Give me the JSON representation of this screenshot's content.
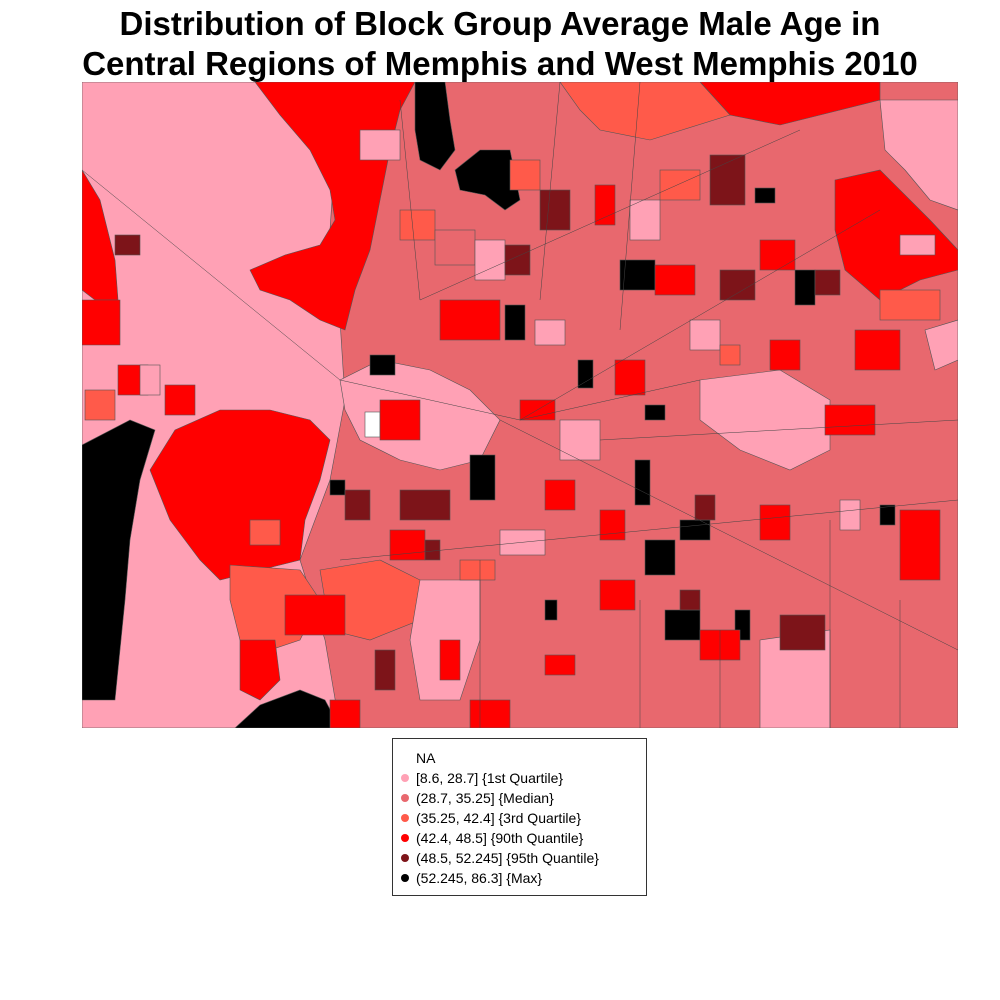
{
  "title": {
    "line1": "Distribution of Block Group Average Male Age in",
    "line2": "Central Regions of Memphis and West Memphis 2010"
  },
  "colors": {
    "na": "#ffffff",
    "q1": "#ffa1b5",
    "median": "#e8686e",
    "q3": "#ff5a4a",
    "q90": "#ff0000",
    "q95": "#7d1419",
    "max": "#000000",
    "border": "#555555"
  },
  "legend": {
    "items": [
      {
        "label": "NA",
        "color": "none"
      },
      {
        "label": "[8.6, 28.7] {1st Quartile}",
        "color": "#ffa1b5"
      },
      {
        "label": "(28.7, 35.25] {Median}",
        "color": "#e8686e"
      },
      {
        "label": "(35.25, 42.4] {3rd Quartile}",
        "color": "#ff5a4a"
      },
      {
        "label": "(42.4, 48.5] {90th Quantile}",
        "color": "#ff0000"
      },
      {
        "label": "(48.5, 52.245] {95th Quantile}",
        "color": "#7d1419"
      },
      {
        "label": "(52.245, 86.3] {Max}",
        "color": "#000000"
      }
    ]
  }
}
